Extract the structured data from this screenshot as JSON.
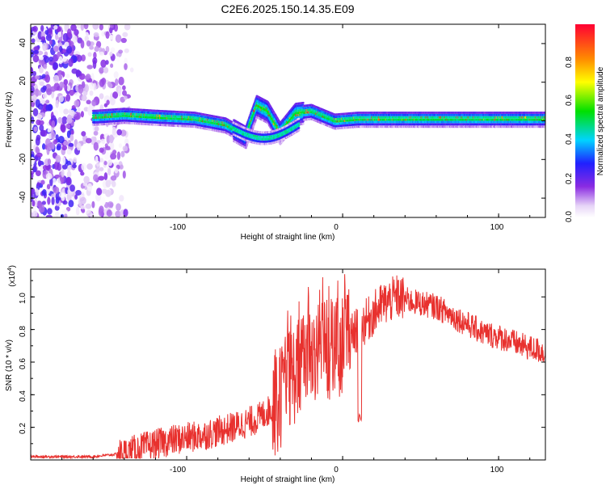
{
  "title": "C2E6.2025.150.14.35.E09",
  "chart_data": [
    {
      "type": "heatmap",
      "xlabel": "Height of straight line (km)",
      "ylabel": "Frequency (Hz)",
      "xlim": [
        -200,
        130
      ],
      "ylim": [
        -50,
        50
      ],
      "x_ticks": [
        "-100",
        "0",
        "100"
      ],
      "y_ticks": [
        "40",
        "20",
        "0",
        "-20",
        "-40"
      ],
      "colorbar": {
        "label": "Normalized spectral amplitude",
        "range": [
          0,
          1
        ],
        "ticks": [
          "0.0",
          "0.2",
          "0.4",
          "0.6",
          "0.8"
        ]
      },
      "signal_band": [
        {
          "x": -158,
          "f": 2
        },
        {
          "x": -140,
          "f": 3
        },
        {
          "x": -120,
          "f": 2
        },
        {
          "x": -95,
          "f": 1
        },
        {
          "x": -75,
          "f": -2
        },
        {
          "x": -62,
          "f": -8
        },
        {
          "x": -55,
          "f": 8
        },
        {
          "x": -48,
          "f": 5
        },
        {
          "x": -40,
          "f": -6
        },
        {
          "x": -30,
          "f": 4
        },
        {
          "x": -20,
          "f": 5
        },
        {
          "x": -5,
          "f": 0
        },
        {
          "x": 10,
          "f": 1
        },
        {
          "x": 40,
          "f": 1
        },
        {
          "x": 80,
          "f": 1
        },
        {
          "x": 110,
          "f": 1
        },
        {
          "x": 130,
          "f": 1
        }
      ]
    },
    {
      "type": "line",
      "xlabel": "Height of straight line (km)",
      "ylabel": "SNR (10 * v/v)",
      "y_multiplier": "(x10",
      "y_multiplier_exp": "4",
      "y_multiplier_close": ")",
      "xlim": [
        -200,
        130
      ],
      "ylim": [
        0,
        1.17
      ],
      "x_ticks": [
        "-100",
        "0",
        "100"
      ],
      "y_ticks": [
        "0.2",
        "0.4",
        "0.6",
        "0.8",
        "1.0"
      ],
      "series_color": "#e8312e",
      "envelope": [
        {
          "x": -200,
          "y": 0.02
        },
        {
          "x": -160,
          "y": 0.02
        },
        {
          "x": -140,
          "y": 0.04
        },
        {
          "x": -130,
          "y": 0.07
        },
        {
          "x": -110,
          "y": 0.12
        },
        {
          "x": -90,
          "y": 0.15
        },
        {
          "x": -70,
          "y": 0.2
        },
        {
          "x": -55,
          "y": 0.25
        },
        {
          "x": -42,
          "y": 0.34
        },
        {
          "x": -35,
          "y": 0.48
        },
        {
          "x": -25,
          "y": 0.6
        },
        {
          "x": -15,
          "y": 0.68
        },
        {
          "x": -5,
          "y": 0.66
        },
        {
          "x": 5,
          "y": 0.76
        },
        {
          "x": 15,
          "y": 0.85
        },
        {
          "x": 25,
          "y": 0.95
        },
        {
          "x": 35,
          "y": 1.0
        },
        {
          "x": 45,
          "y": 0.97
        },
        {
          "x": 60,
          "y": 0.94
        },
        {
          "x": 75,
          "y": 0.86
        },
        {
          "x": 90,
          "y": 0.78
        },
        {
          "x": 105,
          "y": 0.74
        },
        {
          "x": 115,
          "y": 0.7
        },
        {
          "x": 130,
          "y": 0.66
        }
      ],
      "dips": [
        {
          "x": 11,
          "y": 0.23
        }
      ]
    }
  ]
}
